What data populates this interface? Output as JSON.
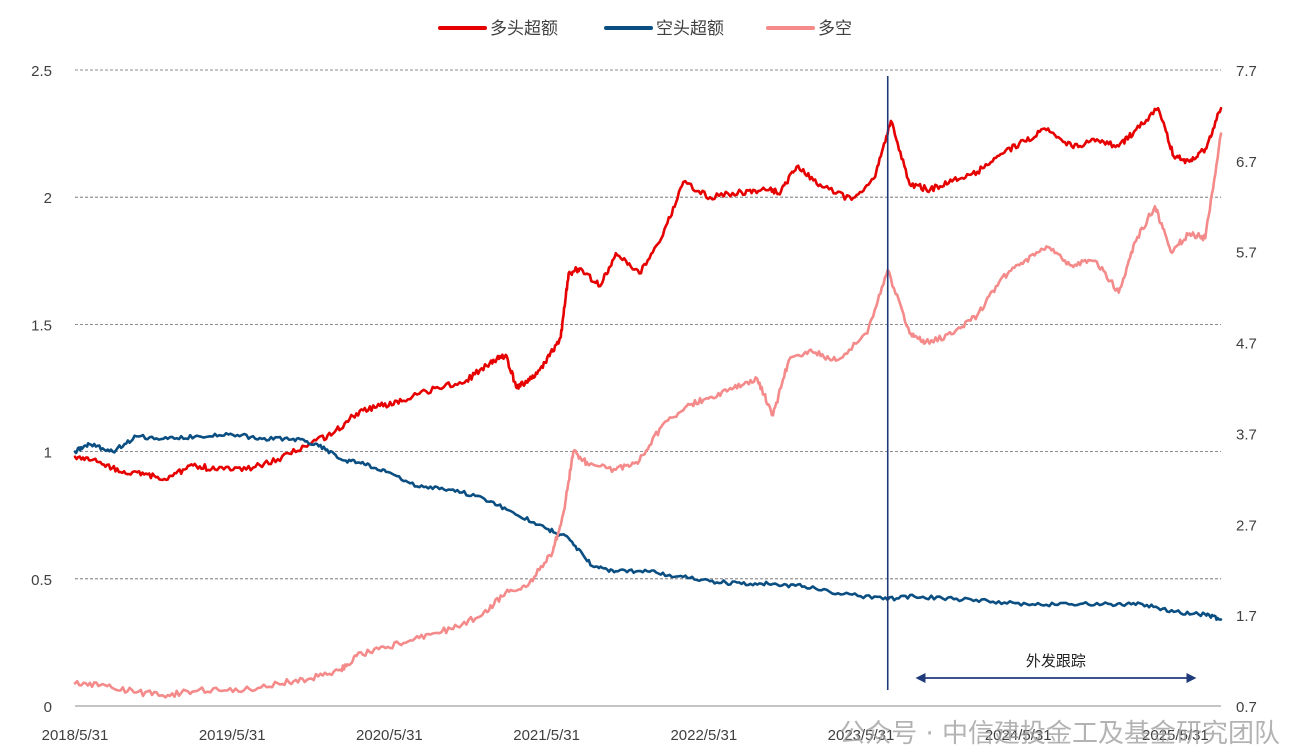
{
  "chart_data": {
    "type": "line",
    "title": "",
    "xlabel": "",
    "ylabel": "",
    "x_ticks": [
      "2018/5/31",
      "2019/5/31",
      "2020/5/31",
      "2021/5/31",
      "2022/5/31",
      "2023/5/31",
      "2024/5/31",
      "2025/5/31"
    ],
    "x_range": [
      2018.41,
      2025.7
    ],
    "y_left": {
      "ticks": [
        "0",
        "0.5",
        "1",
        "1.5",
        "2",
        "2.5"
      ],
      "range": [
        0,
        2.5
      ]
    },
    "y_right": {
      "ticks": [
        "0.7",
        "1.7",
        "2.7",
        "3.7",
        "4.7",
        "5.7",
        "6.7",
        "7.7"
      ],
      "range": [
        0.7,
        7.7
      ]
    },
    "grid": "horizontal dashed",
    "legend": "top",
    "series": [
      {
        "name": "多头超额",
        "axis": "left",
        "color": "#e60000",
        "points": [
          [
            2018.41,
            0.98
          ],
          [
            2018.55,
            0.96
          ],
          [
            2018.7,
            0.92
          ],
          [
            2018.85,
            0.91
          ],
          [
            2019.0,
            0.89
          ],
          [
            2019.15,
            0.95
          ],
          [
            2019.3,
            0.93
          ],
          [
            2019.5,
            0.93
          ],
          [
            2019.7,
            0.97
          ],
          [
            2019.9,
            1.03
          ],
          [
            2020.05,
            1.07
          ],
          [
            2020.2,
            1.15
          ],
          [
            2020.35,
            1.18
          ],
          [
            2020.5,
            1.2
          ],
          [
            2020.7,
            1.25
          ],
          [
            2020.9,
            1.28
          ],
          [
            2021.05,
            1.35
          ],
          [
            2021.15,
            1.38
          ],
          [
            2021.22,
            1.25
          ],
          [
            2021.3,
            1.28
          ],
          [
            2021.4,
            1.35
          ],
          [
            2021.5,
            1.45
          ],
          [
            2021.55,
            1.7
          ],
          [
            2021.62,
            1.72
          ],
          [
            2021.75,
            1.65
          ],
          [
            2021.85,
            1.78
          ],
          [
            2022.0,
            1.7
          ],
          [
            2022.15,
            1.85
          ],
          [
            2022.28,
            2.06
          ],
          [
            2022.45,
            2.0
          ],
          [
            2022.65,
            2.02
          ],
          [
            2022.8,
            2.03
          ],
          [
            2022.9,
            2.02
          ],
          [
            2023.0,
            2.12
          ],
          [
            2023.15,
            2.05
          ],
          [
            2023.35,
            1.99
          ],
          [
            2023.5,
            2.08
          ],
          [
            2023.6,
            2.3
          ],
          [
            2023.72,
            2.05
          ],
          [
            2023.85,
            2.03
          ],
          [
            2024.0,
            2.07
          ],
          [
            2024.15,
            2.1
          ],
          [
            2024.3,
            2.17
          ],
          [
            2024.45,
            2.22
          ],
          [
            2024.6,
            2.27
          ],
          [
            2024.75,
            2.2
          ],
          [
            2024.9,
            2.22
          ],
          [
            2025.05,
            2.2
          ],
          [
            2025.15,
            2.26
          ],
          [
            2025.3,
            2.35
          ],
          [
            2025.4,
            2.16
          ],
          [
            2025.5,
            2.14
          ],
          [
            2025.6,
            2.19
          ],
          [
            2025.7,
            2.35
          ]
        ]
      },
      {
        "name": "空头超额",
        "axis": "left",
        "color": "#0b4f82",
        "points": [
          [
            2018.41,
            1.0
          ],
          [
            2018.5,
            1.03
          ],
          [
            2018.65,
            1.0
          ],
          [
            2018.8,
            1.06
          ],
          [
            2019.0,
            1.05
          ],
          [
            2019.2,
            1.06
          ],
          [
            2019.4,
            1.07
          ],
          [
            2019.6,
            1.05
          ],
          [
            2019.8,
            1.05
          ],
          [
            2019.95,
            1.03
          ],
          [
            2020.1,
            0.97
          ],
          [
            2020.25,
            0.95
          ],
          [
            2020.4,
            0.92
          ],
          [
            2020.6,
            0.86
          ],
          [
            2020.8,
            0.85
          ],
          [
            2021.0,
            0.82
          ],
          [
            2021.2,
            0.76
          ],
          [
            2021.4,
            0.7
          ],
          [
            2021.55,
            0.66
          ],
          [
            2021.7,
            0.55
          ],
          [
            2021.85,
            0.53
          ],
          [
            2022.05,
            0.53
          ],
          [
            2022.25,
            0.51
          ],
          [
            2022.45,
            0.49
          ],
          [
            2022.65,
            0.48
          ],
          [
            2022.85,
            0.48
          ],
          [
            2023.05,
            0.47
          ],
          [
            2023.3,
            0.44
          ],
          [
            2023.55,
            0.42
          ],
          [
            2023.75,
            0.43
          ],
          [
            2024.0,
            0.42
          ],
          [
            2024.25,
            0.41
          ],
          [
            2024.5,
            0.4
          ],
          [
            2024.75,
            0.4
          ],
          [
            2025.0,
            0.4
          ],
          [
            2025.2,
            0.4
          ],
          [
            2025.4,
            0.37
          ],
          [
            2025.6,
            0.36
          ],
          [
            2025.7,
            0.34
          ]
        ]
      },
      {
        "name": "多空",
        "axis": "right",
        "color": "#f48a8a",
        "points": [
          [
            2018.41,
            0.95
          ],
          [
            2018.6,
            0.93
          ],
          [
            2018.8,
            0.85
          ],
          [
            2019.0,
            0.82
          ],
          [
            2019.2,
            0.88
          ],
          [
            2019.45,
            0.86
          ],
          [
            2019.7,
            0.95
          ],
          [
            2019.9,
            1.0
          ],
          [
            2020.1,
            1.1
          ],
          [
            2020.2,
            1.25
          ],
          [
            2020.4,
            1.35
          ],
          [
            2020.6,
            1.45
          ],
          [
            2020.8,
            1.55
          ],
          [
            2021.0,
            1.7
          ],
          [
            2021.15,
            1.95
          ],
          [
            2021.3,
            2.05
          ],
          [
            2021.45,
            2.4
          ],
          [
            2021.52,
            2.85
          ],
          [
            2021.58,
            3.5
          ],
          [
            2021.68,
            3.35
          ],
          [
            2021.85,
            3.3
          ],
          [
            2022.0,
            3.4
          ],
          [
            2022.15,
            3.8
          ],
          [
            2022.3,
            4.0
          ],
          [
            2022.45,
            4.1
          ],
          [
            2022.6,
            4.2
          ],
          [
            2022.75,
            4.3
          ],
          [
            2022.85,
            3.9
          ],
          [
            2022.95,
            4.5
          ],
          [
            2023.1,
            4.6
          ],
          [
            2023.25,
            4.5
          ],
          [
            2023.45,
            4.8
          ],
          [
            2023.58,
            5.5
          ],
          [
            2023.72,
            4.8
          ],
          [
            2023.82,
            4.7
          ],
          [
            2024.0,
            4.8
          ],
          [
            2024.15,
            5.0
          ],
          [
            2024.3,
            5.4
          ],
          [
            2024.45,
            5.6
          ],
          [
            2024.6,
            5.75
          ],
          [
            2024.75,
            5.55
          ],
          [
            2024.9,
            5.6
          ],
          [
            2025.05,
            5.25
          ],
          [
            2025.15,
            5.8
          ],
          [
            2025.28,
            6.2
          ],
          [
            2025.38,
            5.7
          ],
          [
            2025.5,
            5.9
          ],
          [
            2025.6,
            5.85
          ],
          [
            2025.7,
            7.0
          ]
        ]
      }
    ],
    "annotations": [
      {
        "type": "vertical-line",
        "x": 2023.58,
        "color": "#1f3a7a"
      },
      {
        "type": "arrow-range",
        "from": 2023.75,
        "to": 2025.55,
        "text": "外发跟踪"
      }
    ]
  },
  "watermark": {
    "text": "公众号 · 中信建投金工及基金研究团队"
  }
}
